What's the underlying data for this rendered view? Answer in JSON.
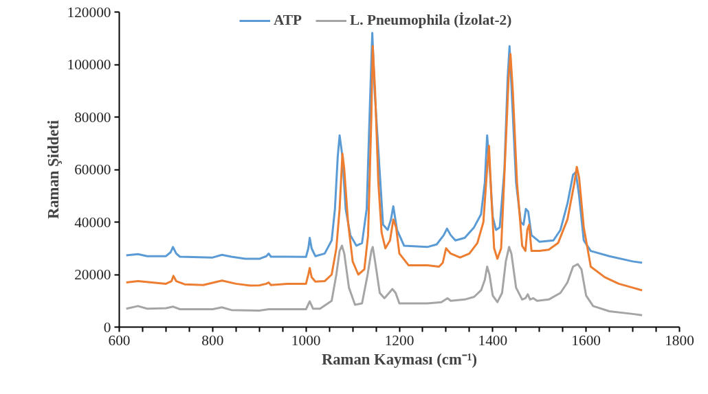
{
  "chart_data": {
    "type": "line",
    "xlabel": "Raman Kayması (cm⁻¹)",
    "ylabel": "Raman Şiddeti",
    "xlim": [
      600,
      1800
    ],
    "ylim": [
      0,
      120000
    ],
    "xticks": [
      600,
      {
        "value": 650,
        "label": null
      },
      {
        "value": 700,
        "label": null
      },
      {
        "value": 750,
        "label": null
      },
      800,
      {
        "value": 850,
        "label": null
      },
      {
        "value": 900,
        "label": null
      },
      {
        "value": 950,
        "label": null
      },
      1000,
      {
        "value": 1050,
        "label": null
      },
      {
        "value": 1100,
        "label": null
      },
      {
        "value": 1150,
        "label": null
      },
      1200,
      {
        "value": 1250,
        "label": null
      },
      {
        "value": 1300,
        "label": null
      },
      {
        "value": 1350,
        "label": null
      },
      1400,
      {
        "value": 1450,
        "label": null
      },
      {
        "value": 1500,
        "label": null
      },
      {
        "value": 1550,
        "label": null
      },
      1600,
      {
        "value": 1650,
        "label": null
      },
      {
        "value": 1700,
        "label": null
      },
      {
        "value": 1750,
        "label": null
      },
      1800
    ],
    "yticks": [
      0,
      20000,
      40000,
      60000,
      80000,
      100000,
      120000
    ],
    "grid": false,
    "legend": "top right",
    "marker": "none",
    "line_style": "solid",
    "series": [
      {
        "name": "ATP",
        "color": "#5b9bd5",
        "x": [
          615,
          640,
          660,
          700,
          710,
          715,
          722,
          730,
          800,
          820,
          840,
          870,
          900,
          915,
          920,
          925,
          960,
          1000,
          1005,
          1008,
          1012,
          1020,
          1040,
          1055,
          1062,
          1068,
          1072,
          1078,
          1085,
          1095,
          1108,
          1120,
          1130,
          1137,
          1142,
          1147,
          1165,
          1175,
          1182,
          1187,
          1195,
          1210,
          1260,
          1280,
          1295,
          1302,
          1310,
          1320,
          1340,
          1360,
          1375,
          1383,
          1388,
          1393,
          1400,
          1407,
          1415,
          1425,
          1432,
          1436,
          1450,
          1460,
          1466,
          1471,
          1476,
          1483,
          1500,
          1530,
          1545,
          1560,
          1572,
          1578,
          1585,
          1595,
          1610,
          1650,
          1700,
          1720
        ],
        "values": [
          27300,
          27800,
          27000,
          27000,
          28500,
          30500,
          28000,
          26800,
          26500,
          27500,
          26800,
          26000,
          26000,
          27000,
          28000,
          26800,
          26800,
          26700,
          30000,
          34000,
          30000,
          27000,
          28000,
          33000,
          45000,
          65000,
          73000,
          65000,
          45000,
          35000,
          31000,
          32000,
          45000,
          85000,
          112000,
          90000,
          39000,
          37000,
          41000,
          46000,
          37000,
          31000,
          30500,
          31500,
          35000,
          37500,
          35000,
          33000,
          34000,
          38000,
          43000,
          55000,
          73000,
          62000,
          42000,
          37000,
          38000,
          60000,
          95000,
          107000,
          55000,
          40000,
          39000,
          45000,
          44000,
          35000,
          32500,
          33000,
          37000,
          47000,
          58000,
          59000,
          50000,
          33000,
          29000,
          27000,
          25000,
          24500
        ]
      },
      {
        "color": "#ed7d31",
        "x": [
          615,
          640,
          700,
          712,
          716,
          722,
          740,
          780,
          820,
          850,
          880,
          900,
          915,
          920,
          925,
          960,
          1000,
          1005,
          1008,
          1012,
          1020,
          1040,
          1055,
          1065,
          1072,
          1078,
          1082,
          1090,
          1100,
          1112,
          1125,
          1133,
          1140,
          1143,
          1148,
          1155,
          1162,
          1170,
          1180,
          1187,
          1193,
          1200,
          1220,
          1260,
          1285,
          1293,
          1300,
          1310,
          1330,
          1350,
          1367,
          1380,
          1387,
          1392,
          1397,
          1403,
          1410,
          1418,
          1428,
          1434,
          1438,
          1443,
          1452,
          1463,
          1470,
          1474,
          1478,
          1483,
          1500,
          1520,
          1540,
          1560,
          1575,
          1580,
          1585,
          1595,
          1610,
          1640,
          1670,
          1700,
          1720
        ],
        "values": [
          17000,
          17500,
          16500,
          17500,
          19500,
          17500,
          16300,
          16000,
          17700,
          16500,
          15800,
          15900,
          16500,
          17000,
          16000,
          16500,
          16500,
          20000,
          22500,
          19000,
          17300,
          17500,
          20000,
          30000,
          45000,
          66000,
          60000,
          40000,
          25000,
          20000,
          22000,
          35000,
          80000,
          107000,
          90000,
          55000,
          36000,
          30000,
          33000,
          41000,
          38000,
          28000,
          23500,
          23500,
          23000,
          24500,
          30000,
          28000,
          26500,
          28000,
          32000,
          40000,
          58000,
          69000,
          50000,
          30000,
          26000,
          30000,
          70000,
          95000,
          104000,
          90000,
          55000,
          31000,
          29000,
          37000,
          39000,
          29000,
          29000,
          29500,
          32000,
          41000,
          55000,
          61000,
          57000,
          38000,
          23000,
          19000,
          16500,
          15000,
          14000
        ]
      },
      {
        "name": "L. Pneumophila (İzolat-2)",
        "color": "#a5a5a5",
        "x": [
          615,
          640,
          660,
          700,
          715,
          730,
          800,
          820,
          840,
          900,
          920,
          960,
          1000,
          1008,
          1015,
          1030,
          1055,
          1065,
          1072,
          1077,
          1082,
          1092,
          1105,
          1120,
          1132,
          1140,
          1143,
          1148,
          1158,
          1168,
          1178,
          1185,
          1192,
          1200,
          1260,
          1290,
          1303,
          1310,
          1340,
          1360,
          1375,
          1383,
          1388,
          1393,
          1400,
          1410,
          1420,
          1428,
          1435,
          1440,
          1450,
          1463,
          1470,
          1475,
          1480,
          1487,
          1495,
          1520,
          1545,
          1560,
          1572,
          1582,
          1590,
          1600,
          1615,
          1650,
          1700,
          1720
        ],
        "values": [
          7000,
          8000,
          7000,
          7200,
          7800,
          6800,
          6800,
          7500,
          6500,
          6300,
          6800,
          6800,
          6800,
          9800,
          7000,
          7000,
          10000,
          20000,
          29000,
          31000,
          28000,
          15000,
          8500,
          9000,
          20000,
          29000,
          30500,
          25000,
          13000,
          11000,
          13000,
          14500,
          13000,
          9000,
          9000,
          9500,
          11000,
          10000,
          10500,
          11500,
          14000,
          18000,
          23000,
          20000,
          12000,
          9500,
          13000,
          25000,
          30500,
          28000,
          15000,
          10500,
          11000,
          12500,
          10500,
          11000,
          10000,
          10500,
          13000,
          17000,
          23000,
          24000,
          22000,
          12000,
          8000,
          6000,
          5000,
          4500
        ]
      }
    ]
  }
}
